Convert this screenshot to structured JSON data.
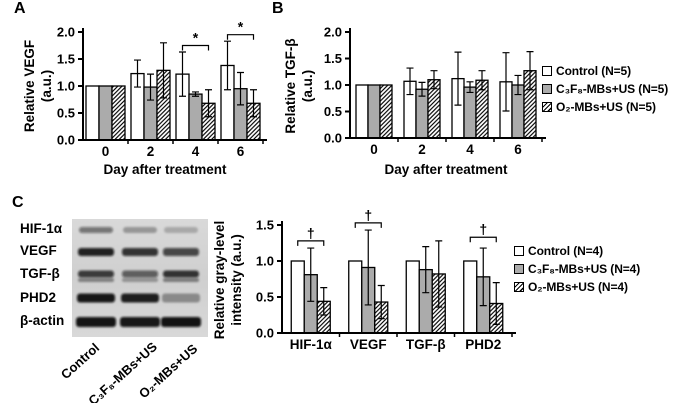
{
  "panels": {
    "a": {
      "label": "A"
    },
    "b": {
      "label": "B"
    },
    "c": {
      "label": "C"
    }
  },
  "axis_titles": {
    "a_y": "Relative VEGF\n(a.u.)",
    "b_y": "Relative TGF-β\n(a.u.)",
    "c_y": "Relative gray-level\nintensity (a.u.)",
    "ab_x": "Day after treatment"
  },
  "legends": {
    "ab": {
      "items": [
        {
          "swatch": "open",
          "label": "Control (N=5)"
        },
        {
          "swatch": "gray",
          "label": "C₃F₈-MBs+US (N=5)"
        },
        {
          "swatch": "hatch",
          "label": "O₂-MBs+US (N=5)"
        }
      ]
    },
    "c": {
      "items": [
        {
          "swatch": "open",
          "label": "Control (N=4)"
        },
        {
          "swatch": "gray",
          "label": "C₃F₈-MBs+US (N=4)"
        },
        {
          "swatch": "hatch",
          "label": "O₂-MBs+US (N=4)"
        }
      ]
    }
  },
  "blot": {
    "row_labels": [
      "HIF-1α",
      "VEGF",
      "TGF-β",
      "PHD2",
      "β-actin"
    ],
    "lane_labels": [
      "Control",
      "C₃F₈-MBs+US",
      "O₂-MBs+US"
    ],
    "band_intensities": [
      [
        0.5,
        0.3,
        0.22
      ],
      [
        0.9,
        0.82,
        0.72
      ],
      [
        0.78,
        0.6,
        0.82
      ],
      [
        0.95,
        0.92,
        0.35
      ],
      [
        0.96,
        0.95,
        0.97
      ]
    ]
  },
  "chart_data": [
    {
      "id": "a",
      "type": "bar",
      "title": "",
      "ylabel": "Relative VEGF (a.u.)",
      "xlabel": "Day after treatment",
      "ylim": [
        0,
        2.0
      ],
      "yticks": [
        "0.0",
        "0.5",
        "1.0",
        "1.5",
        "2.0"
      ],
      "categories": [
        "0",
        "2",
        "4",
        "6"
      ],
      "series": [
        {
          "name": "Control (N=5)",
          "style": "open",
          "values": [
            1.0,
            1.23,
            1.22,
            1.38
          ],
          "errors": [
            0,
            0.25,
            0.41,
            0.45
          ]
        },
        {
          "name": "C₃F₈-MBs+US (N=5)",
          "style": "gray",
          "values": [
            1.0,
            0.98,
            0.85,
            0.95
          ],
          "errors": [
            0,
            0.24,
            0.04,
            0.3
          ]
        },
        {
          "name": "O₂-MBs+US (N=5)",
          "style": "hatch",
          "values": [
            1.0,
            1.29,
            0.68,
            0.68
          ],
          "errors": [
            0,
            0.51,
            0.25,
            0.25
          ]
        }
      ],
      "significance": [
        {
          "category": 2,
          "from": 0,
          "to": 2,
          "y": 1.75,
          "label": "*"
        },
        {
          "category": 3,
          "from": 0,
          "to": 2,
          "y": 1.95,
          "label": "*"
        }
      ],
      "legend_position": "right"
    },
    {
      "id": "b",
      "type": "bar",
      "title": "",
      "ylabel": "Relative TGF-β (a.u.)",
      "xlabel": "Day after treatment",
      "ylim": [
        0,
        2.0
      ],
      "yticks": [
        "0.0",
        "0.5",
        "1.0",
        "1.5",
        "2.0"
      ],
      "categories": [
        "0",
        "2",
        "4",
        "6"
      ],
      "series": [
        {
          "name": "Control (N=5)",
          "style": "open",
          "values": [
            1.0,
            1.07,
            1.12,
            1.06
          ],
          "errors": [
            0,
            0.25,
            0.5,
            0.55
          ]
        },
        {
          "name": "C₃F₈-MBs+US (N=5)",
          "style": "gray",
          "values": [
            1.0,
            0.92,
            0.96,
            1.0
          ],
          "errors": [
            0,
            0.13,
            0.1,
            0.18
          ]
        },
        {
          "name": "O₂-MBs+US (N=5)",
          "style": "hatch",
          "values": [
            1.0,
            1.1,
            1.09,
            1.27
          ],
          "errors": [
            0,
            0.17,
            0.18,
            0.36
          ]
        }
      ],
      "significance": [],
      "legend_position": "right"
    },
    {
      "id": "c",
      "type": "bar",
      "title": "",
      "ylabel": "Relative gray-level intensity (a.u.)",
      "xlabel": "",
      "ylim": [
        0,
        1.5
      ],
      "yticks": [
        "0.0",
        "0.5",
        "1.0",
        "1.5"
      ],
      "categories": [
        "HIF-1α",
        "VEGF",
        "TGF-β",
        "PHD2"
      ],
      "series": [
        {
          "name": "Control (N=4)",
          "style": "open",
          "values": [
            1.0,
            1.0,
            1.0,
            1.0
          ],
          "errors": [
            0,
            0,
            0,
            0
          ]
        },
        {
          "name": "C₃F₈-MBs+US (N=4)",
          "style": "gray",
          "values": [
            0.81,
            0.91,
            0.88,
            0.78
          ],
          "errors": [
            0.37,
            0.52,
            0.32,
            0.4
          ]
        },
        {
          "name": "O₂-MBs+US (N=4)",
          "style": "hatch",
          "values": [
            0.44,
            0.43,
            0.82,
            0.41
          ],
          "errors": [
            0.19,
            0.23,
            0.46,
            0.29
          ]
        }
      ],
      "significance": [
        {
          "category": 0,
          "from": 0,
          "to": 2,
          "y": 1.28,
          "label": "†"
        },
        {
          "category": 1,
          "from": 0,
          "to": 2,
          "y": 1.53,
          "label": "†"
        },
        {
          "category": 3,
          "from": 0,
          "to": 2,
          "y": 1.33,
          "label": "†"
        }
      ],
      "legend_position": "right"
    }
  ]
}
